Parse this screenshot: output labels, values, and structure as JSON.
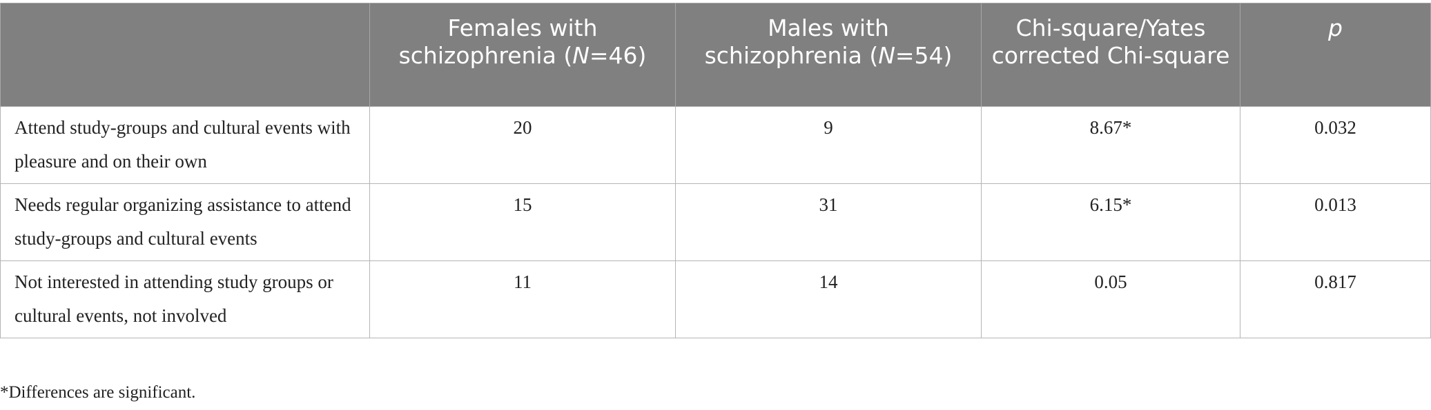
{
  "table": {
    "header": {
      "col0": "",
      "col1_pre": "Females with schizophrenia (",
      "col1_n": "N",
      "col1_post": "=46)",
      "col2_pre": "Males with schizophrenia (",
      "col2_n": "N",
      "col2_post": "=54)",
      "col3": "Chi-square/Yates corrected Chi-square",
      "col4": "p"
    },
    "rows": [
      {
        "label": "Attend study-groups and cultural events with pleasure and on their own",
        "females": "20",
        "males": "9",
        "chi": "8.67*",
        "p": "0.032"
      },
      {
        "label": "Needs regular organizing assistance to attend study-groups and cultural events",
        "females": "15",
        "males": "31",
        "chi": "6.15*",
        "p": "0.013"
      },
      {
        "label": "Not interested in attending study groups or cultural events, not involved",
        "females": "11",
        "males": "14",
        "chi": "0.05",
        "p": "0.817"
      }
    ]
  },
  "footnote": "*Differences are significant."
}
